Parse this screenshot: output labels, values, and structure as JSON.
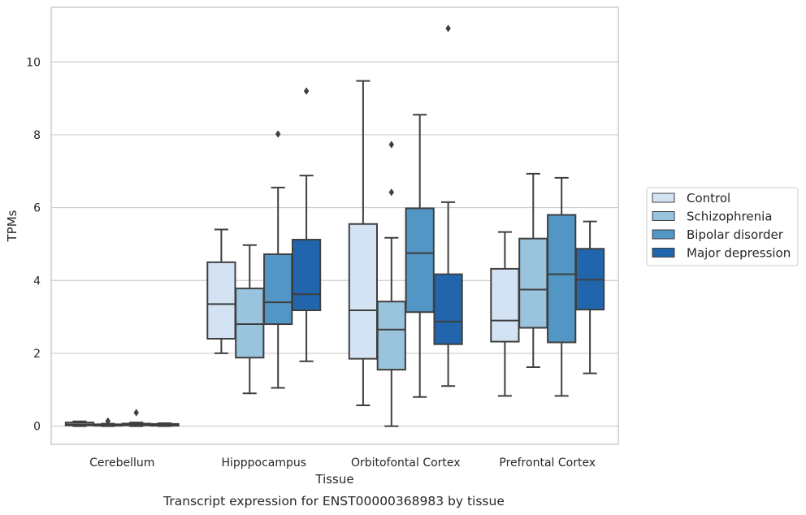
{
  "chart_data": {
    "type": "box",
    "caption": "Transcript expression for ENST00000368983 by tissue",
    "xlabel": "Tissue",
    "ylabel": "TPMs",
    "ylim": [
      -0.5,
      11.5
    ],
    "yticks": [
      0,
      2,
      4,
      6,
      8,
      10
    ],
    "grid": "horizontal",
    "legend_position": "right",
    "categories": [
      "Cerebellum",
      "Hipppocampus",
      "Orbitofontal Cortex",
      "Prefrontal Cortex"
    ],
    "series": [
      {
        "name": "Control",
        "color": "#d4e3f3",
        "boxes": [
          {
            "whislo": 0.0,
            "q1": 0.02,
            "med": 0.05,
            "q3": 0.1,
            "whishi": 0.13,
            "fliers": []
          },
          {
            "whislo": 2.0,
            "q1": 2.4,
            "med": 3.35,
            "q3": 4.5,
            "whishi": 5.4,
            "fliers": []
          },
          {
            "whislo": 0.57,
            "q1": 1.85,
            "med": 3.18,
            "q3": 5.55,
            "whishi": 9.48,
            "fliers": []
          },
          {
            "whislo": 0.83,
            "q1": 2.32,
            "med": 2.9,
            "q3": 4.32,
            "whishi": 5.33,
            "fliers": []
          }
        ]
      },
      {
        "name": "Schizophrenia",
        "color": "#9ac3de",
        "boxes": [
          {
            "whislo": 0.0,
            "q1": 0.01,
            "med": 0.03,
            "q3": 0.05,
            "whishi": 0.07,
            "fliers": [
              0.14
            ]
          },
          {
            "whislo": 0.9,
            "q1": 1.88,
            "med": 2.8,
            "q3": 3.78,
            "whishi": 4.97,
            "fliers": []
          },
          {
            "whislo": 0.0,
            "q1": 1.55,
            "med": 2.65,
            "q3": 3.42,
            "whishi": 5.17,
            "fliers": [
              6.42,
              7.73
            ]
          },
          {
            "whislo": 1.62,
            "q1": 2.7,
            "med": 3.75,
            "q3": 5.15,
            "whishi": 6.93,
            "fliers": []
          }
        ]
      },
      {
        "name": "Bipolar disorder",
        "color": "#5296c5",
        "boxes": [
          {
            "whislo": 0.0,
            "q1": 0.02,
            "med": 0.04,
            "q3": 0.07,
            "whishi": 0.1,
            "fliers": [
              0.37
            ]
          },
          {
            "whislo": 1.05,
            "q1": 2.8,
            "med": 3.4,
            "q3": 4.72,
            "whishi": 6.55,
            "fliers": [
              8.02
            ]
          },
          {
            "whislo": 0.8,
            "q1": 3.13,
            "med": 4.75,
            "q3": 5.98,
            "whishi": 8.55,
            "fliers": []
          },
          {
            "whislo": 0.83,
            "q1": 2.3,
            "med": 4.17,
            "q3": 5.8,
            "whishi": 6.82,
            "fliers": []
          }
        ]
      },
      {
        "name": "Major depression",
        "color": "#2166ac",
        "boxes": [
          {
            "whislo": 0.0,
            "q1": 0.01,
            "med": 0.03,
            "q3": 0.06,
            "whishi": 0.08,
            "fliers": []
          },
          {
            "whislo": 1.78,
            "q1": 3.18,
            "med": 3.62,
            "q3": 5.12,
            "whishi": 6.88,
            "fliers": [
              9.2
            ]
          },
          {
            "whislo": 1.1,
            "q1": 2.25,
            "med": 2.87,
            "q3": 4.17,
            "whishi": 6.15,
            "fliers": [
              10.92
            ]
          },
          {
            "whislo": 1.45,
            "q1": 3.2,
            "med": 4.02,
            "q3": 4.87,
            "whishi": 5.62,
            "fliers": []
          }
        ]
      }
    ]
  }
}
